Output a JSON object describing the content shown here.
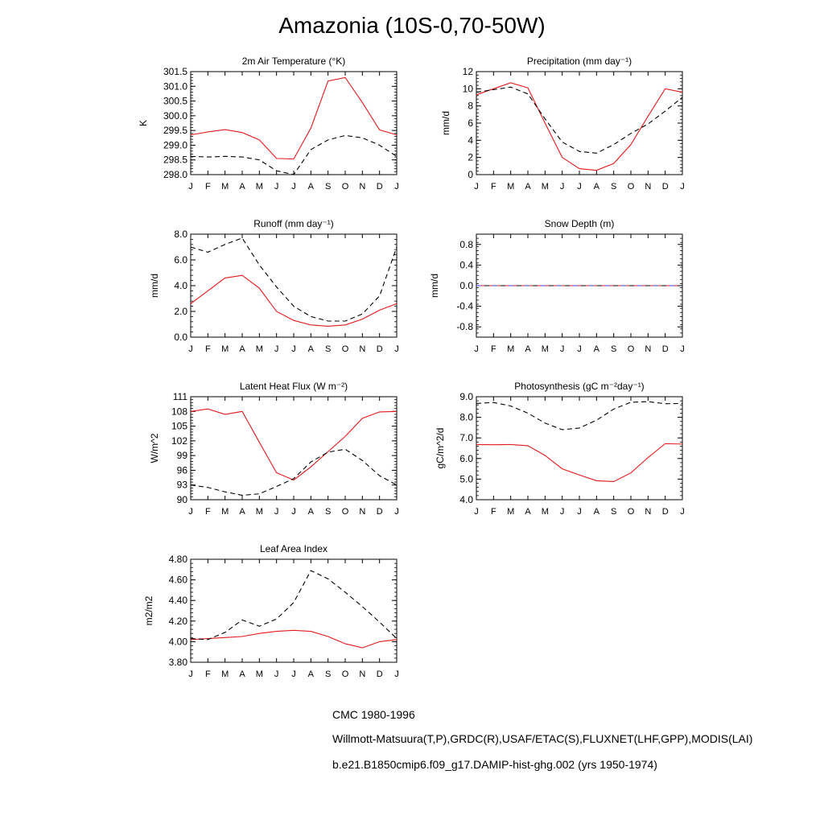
{
  "title": "Amazonia (10S-0,70-50W)",
  "months": [
    "J",
    "F",
    "M",
    "A",
    "M",
    "J",
    "J",
    "A",
    "S",
    "O",
    "N",
    "D",
    "J"
  ],
  "colors": {
    "model": "#e41a1c",
    "obs": "#000000",
    "obs2_mix": "#3b3bd9"
  },
  "legend": [
    {
      "label": "CMC 1980-1996",
      "style": "dashed-black"
    },
    {
      "label": "Willmott-Matsuura(T,P),GRDC(R),USAF/ETAC(S),FLUXNET(LHF,GPP),MODIS(LAI)",
      "style": "dashed-multicolor"
    },
    {
      "label": "b.e21.B1850cmip6.f09_g17.DAMIP-hist-ghg.002 (yrs 1950-1974)",
      "style": "solid-red"
    }
  ],
  "chart_data": [
    {
      "type": "line",
      "title": "2m Air Temperature (°K)",
      "ylabel": "K",
      "ylim": [
        298.0,
        301.5
      ],
      "yticks": [
        "298.0",
        "298.5",
        "299.0",
        "299.5",
        "300.0",
        "300.5",
        "301.0",
        "301.5"
      ],
      "yticks_values": [
        298.0,
        298.5,
        299.0,
        299.5,
        300.0,
        300.5,
        301.0,
        301.5
      ],
      "series": [
        {
          "style": "solid-red",
          "values": [
            299.35,
            299.45,
            299.53,
            299.43,
            299.18,
            298.55,
            298.53,
            299.58,
            301.18,
            301.3,
            300.45,
            299.52,
            299.35
          ]
        },
        {
          "style": "dashed-black",
          "values": [
            298.62,
            298.6,
            298.62,
            298.6,
            298.5,
            298.13,
            298.0,
            298.85,
            299.18,
            299.33,
            299.25,
            299.0,
            298.62
          ]
        }
      ]
    },
    {
      "type": "line",
      "title": "Precipitation (mm day⁻¹)",
      "ylabel": "mm/d",
      "ylim": [
        0,
        12
      ],
      "yticks": [
        "0",
        "2",
        "4",
        "6",
        "8",
        "10",
        "12"
      ],
      "yticks_values": [
        0,
        2,
        4,
        6,
        8,
        10,
        12
      ],
      "series": [
        {
          "style": "solid-red",
          "values": [
            9.3,
            10.0,
            10.7,
            10.1,
            6.0,
            2.0,
            0.7,
            0.5,
            1.3,
            3.5,
            6.8,
            10.0,
            9.6
          ]
        },
        {
          "style": "dashed-black",
          "values": [
            9.6,
            9.9,
            10.2,
            9.4,
            6.5,
            3.8,
            2.7,
            2.5,
            3.5,
            4.8,
            5.9,
            7.4,
            9.0
          ]
        }
      ]
    },
    {
      "type": "line",
      "title": "Runoff (mm day⁻¹)",
      "ylabel": "mm/d",
      "ylim": [
        0,
        8
      ],
      "yticks": [
        "0.0",
        "2.0",
        "4.0",
        "6.0",
        "8.0"
      ],
      "yticks_values": [
        0,
        2,
        4,
        6,
        8
      ],
      "series": [
        {
          "style": "solid-red",
          "values": [
            2.6,
            3.6,
            4.6,
            4.8,
            3.8,
            2.0,
            1.3,
            0.95,
            0.85,
            0.95,
            1.4,
            2.1,
            2.6
          ]
        },
        {
          "style": "dashed-black",
          "values": [
            7.0,
            6.6,
            7.2,
            7.7,
            5.6,
            3.9,
            2.4,
            1.6,
            1.25,
            1.25,
            1.8,
            3.2,
            7.0
          ]
        }
      ]
    },
    {
      "type": "line",
      "title": "Snow Depth (m)",
      "ylabel": "mm/d",
      "ylim": [
        -1.0,
        1.0
      ],
      "yticks": [
        "-0.8",
        "-0.4",
        "0.0",
        "0.4",
        "0.8"
      ],
      "yticks_values": [
        -0.8,
        -0.4,
        0.0,
        0.4,
        0.8
      ],
      "series": [
        {
          "style": "solid-red",
          "values": [
            0,
            0,
            0,
            0,
            0,
            0,
            0,
            0,
            0,
            0,
            0,
            0,
            0
          ]
        },
        {
          "style": "dashed-multicolor",
          "values": [
            0,
            0,
            0,
            0,
            0,
            0,
            0,
            0,
            0,
            0,
            0,
            0,
            0
          ]
        }
      ]
    },
    {
      "type": "line",
      "title": "Latent Heat Flux (W m⁻²)",
      "ylabel": "W/m^2",
      "ylim": [
        90,
        111
      ],
      "yticks": [
        "90",
        "93",
        "96",
        "99",
        "102",
        "105",
        "108",
        "111"
      ],
      "yticks_values": [
        90,
        93,
        96,
        99,
        102,
        105,
        108,
        111
      ],
      "series": [
        {
          "style": "solid-red",
          "values": [
            108.0,
            108.5,
            107.4,
            108.0,
            101.7,
            95.5,
            94.0,
            96.7,
            99.8,
            102.9,
            106.6,
            107.9,
            108.0
          ]
        },
        {
          "style": "dashed-black",
          "values": [
            93.0,
            92.5,
            91.6,
            90.9,
            91.2,
            92.7,
            94.3,
            97.7,
            99.7,
            100.3,
            98.0,
            94.9,
            93.0
          ]
        }
      ]
    },
    {
      "type": "line",
      "title": "Photosynthesis (gC m⁻²day⁻¹)",
      "ylabel": "gC/m^2/d",
      "ylim": [
        4.0,
        9.0
      ],
      "yticks": [
        "4.0",
        "5.0",
        "6.0",
        "7.0",
        "8.0",
        "9.0"
      ],
      "yticks_values": [
        4,
        5,
        6,
        7,
        8,
        9
      ],
      "series": [
        {
          "style": "solid-red",
          "values": [
            6.68,
            6.67,
            6.68,
            6.62,
            6.15,
            5.5,
            5.2,
            4.92,
            4.88,
            5.3,
            6.05,
            6.72,
            6.7
          ]
        },
        {
          "style": "dashed-black",
          "values": [
            8.67,
            8.72,
            8.55,
            8.2,
            7.72,
            7.4,
            7.48,
            7.86,
            8.4,
            8.73,
            8.76,
            8.66,
            8.67
          ]
        }
      ]
    },
    {
      "type": "line",
      "title": "Leaf Area Index",
      "ylabel": "m2/m2",
      "ylim": [
        3.8,
        4.8
      ],
      "yticks": [
        "3.80",
        "4.00",
        "4.20",
        "4.40",
        "4.60",
        "4.80"
      ],
      "yticks_values": [
        3.8,
        4.0,
        4.2,
        4.4,
        4.6,
        4.8
      ],
      "series": [
        {
          "style": "solid-red",
          "values": [
            4.02,
            4.03,
            4.04,
            4.05,
            4.08,
            4.1,
            4.11,
            4.1,
            4.05,
            3.98,
            3.94,
            4.0,
            4.02
          ]
        },
        {
          "style": "dashed-black",
          "values": [
            4.03,
            4.02,
            4.09,
            4.21,
            4.15,
            4.22,
            4.38,
            4.69,
            4.61,
            4.48,
            4.34,
            4.19,
            4.03
          ]
        }
      ]
    }
  ]
}
